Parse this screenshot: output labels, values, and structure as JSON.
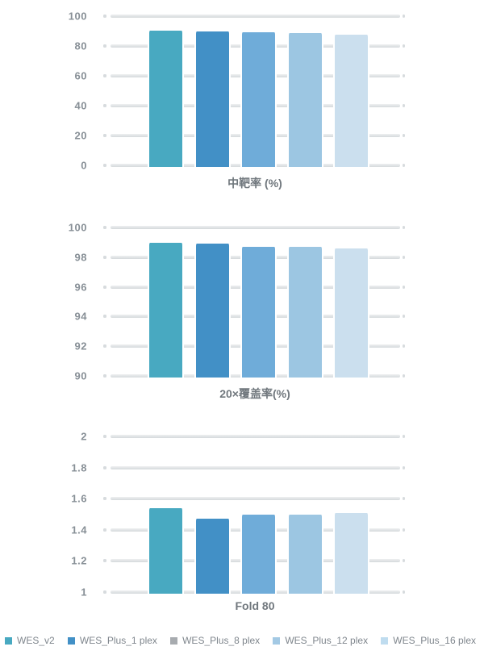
{
  "page": {
    "background_color": "#FFFFFF"
  },
  "series": [
    {
      "name": "WES_v2",
      "bar_color": "#48A9C1",
      "swatch_color": "#48A9C1"
    },
    {
      "name": "WES_Plus_1 plex",
      "bar_color": "#4290C6",
      "swatch_color": "#4290C6"
    },
    {
      "name": "WES_Plus_8 plex",
      "bar_color": "#6FACD9",
      "swatch_color": "#A7ABAF"
    },
    {
      "name": "WES_Plus_12 plex",
      "bar_color": "#9CC6E2",
      "swatch_color": "#A3C9E4"
    },
    {
      "name": "WES_Plus_16 plex",
      "bar_color": "#CBDFEE",
      "swatch_color": "#BFDCEF"
    }
  ],
  "chart_data": [
    {
      "type": "bar",
      "xlabel": "中靶率 (%)",
      "categories": [
        "WES_v2",
        "WES_Plus_1 plex",
        "WES_Plus_8 plex",
        "WES_Plus_12 plex",
        "WES_Plus_16 plex"
      ],
      "values": [
        91.5,
        91.0,
        90.2,
        90.0,
        88.8
      ],
      "ylim": [
        0,
        100
      ],
      "yticks": [
        "0",
        "20",
        "40",
        "60",
        "80",
        "100"
      ],
      "grid": "on",
      "legend_position": "bottom-shared"
    },
    {
      "type": "bar",
      "xlabel": "20×覆盖率(%)",
      "categories": [
        "WES_v2",
        "WES_Plus_1 plex",
        "WES_Plus_8 plex",
        "WES_Plus_12 plex",
        "WES_Plus_16 plex"
      ],
      "values": [
        99.1,
        99.0,
        98.8,
        98.8,
        98.7
      ],
      "ylim": [
        90,
        100
      ],
      "yticks": [
        "90",
        "92",
        "94",
        "96",
        "98",
        "100"
      ],
      "grid": "on",
      "legend_position": "bottom-shared"
    },
    {
      "type": "bar",
      "xlabel": "Fold 80",
      "categories": [
        "WES_v2",
        "WES_Plus_1 plex",
        "WES_Plus_8 plex",
        "WES_Plus_12 plex",
        "WES_Plus_16 plex"
      ],
      "values": [
        1.55,
        1.48,
        1.51,
        1.51,
        1.52
      ],
      "ylim": [
        1,
        2
      ],
      "yticks": [
        "1",
        "1.2",
        "1.4",
        "1.6",
        "1.8",
        "2"
      ],
      "grid": "on",
      "legend_position": "bottom-shared"
    }
  ],
  "style": {
    "gridline_color": "#D7DBDE",
    "tick_label_color": "#878F96",
    "axis_title_color": "#70777D",
    "legend_text_color": "#7F868D"
  }
}
